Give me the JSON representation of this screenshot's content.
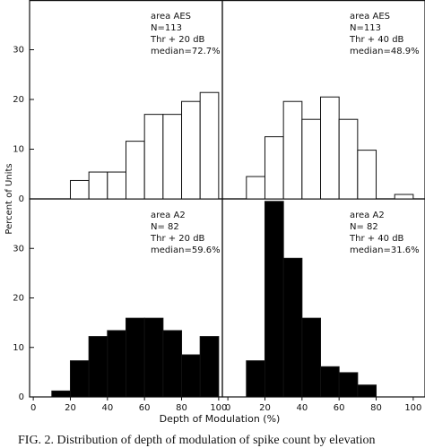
{
  "ylabel": "Percent of Units",
  "xlabel": "Depth of Modulation (%)",
  "caption": "FIG. 2.    Distribution of depth of modulation of spike count by elevation",
  "chart_data": [
    {
      "type": "histogram",
      "annotations": [
        "area AES",
        "N=113",
        "Thr + 20 dB",
        "median=72.7%"
      ],
      "bins": [
        0,
        10,
        20,
        30,
        40,
        50,
        60,
        70,
        80,
        90,
        100
      ],
      "values": [
        0,
        0,
        3.7,
        5.4,
        5.4,
        11.6,
        17,
        17,
        19.6,
        21.4
      ],
      "color": "#ffffff",
      "xlim": [
        -2,
        102
      ],
      "ylim": [
        0,
        40
      ],
      "yticks": [
        0,
        10,
        20,
        30
      ]
    },
    {
      "type": "histogram",
      "annotations": [
        "area AES",
        "N=113",
        "Thr + 40 dB",
        "median=48.9%"
      ],
      "bins": [
        0,
        10,
        20,
        30,
        40,
        50,
        60,
        70,
        80,
        90,
        100
      ],
      "values": [
        0,
        4.5,
        12.5,
        19.6,
        16,
        20.5,
        16,
        9.8,
        0,
        0.9
      ],
      "color": "#ffffff",
      "xlim": [
        -2,
        102
      ],
      "ylim": [
        0,
        40
      ]
    },
    {
      "type": "histogram",
      "annotations": [
        "area A2",
        "N= 82",
        "Thr + 20 dB",
        "median=59.6%"
      ],
      "bins": [
        0,
        10,
        20,
        30,
        40,
        50,
        60,
        70,
        80,
        90,
        100
      ],
      "values": [
        0,
        1.2,
        7.3,
        12.2,
        13.4,
        15.9,
        15.9,
        13.4,
        8.5,
        12.2
      ],
      "color": "#000000",
      "xlim": [
        -2,
        102
      ],
      "ylim": [
        0,
        40
      ],
      "yticks": [
        0,
        10,
        20,
        30
      ],
      "xticks": [
        0,
        20,
        40,
        60,
        80,
        100
      ]
    },
    {
      "type": "histogram",
      "annotations": [
        "area A2",
        "N= 82",
        "Thr + 40 dB",
        "median=31.6%"
      ],
      "bins": [
        0,
        10,
        20,
        30,
        40,
        50,
        60,
        70,
        80,
        90,
        100
      ],
      "values": [
        0,
        7.3,
        39.5,
        28,
        15.9,
        6.1,
        4.9,
        2.4,
        0,
        0
      ],
      "color": "#000000",
      "xlim": [
        -2,
        102
      ],
      "ylim": [
        0,
        40
      ],
      "xticks": [
        0,
        20,
        40,
        60,
        80,
        100
      ]
    }
  ]
}
